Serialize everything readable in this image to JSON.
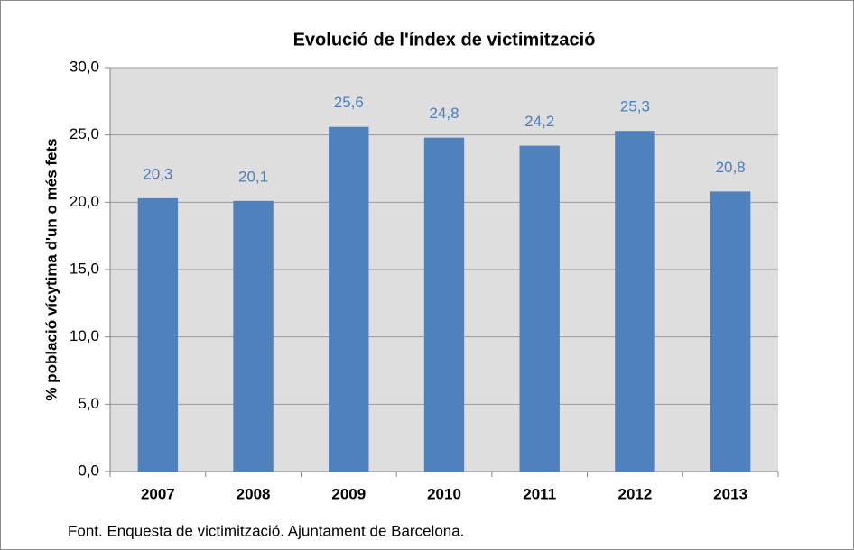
{
  "chart_data": {
    "type": "bar",
    "title": "Evolució de l'índex de victimització",
    "y_label": "% població vícytima d'un o més fets",
    "source": "Font. Enquesta de victimització.  Ajuntament de Barcelona.",
    "categories": [
      "2007",
      "2008",
      "2009",
      "2010",
      "2011",
      "2012",
      "2013"
    ],
    "values": [
      20.3,
      20.1,
      25.6,
      24.8,
      24.2,
      25.3,
      20.8
    ],
    "value_labels": [
      "20,3",
      "20,1",
      "25,6",
      "24,8",
      "24,2",
      "25,3",
      "20,8"
    ],
    "color": "#4f81bd",
    "ylim": [
      0,
      30
    ],
    "yticks": [
      {
        "value": 0,
        "label": "0,0"
      },
      {
        "value": 5,
        "label": "5,0"
      },
      {
        "value": 10,
        "label": "10,0"
      },
      {
        "value": 15,
        "label": "15,0"
      },
      {
        "value": 20,
        "label": "20,0"
      },
      {
        "value": 25,
        "label": "25,0"
      },
      {
        "value": 30,
        "label": "30,0"
      }
    ],
    "grid": true
  }
}
